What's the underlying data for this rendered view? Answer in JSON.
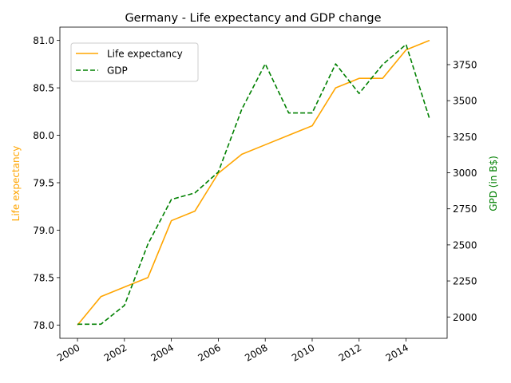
{
  "chart_data": {
    "type": "line",
    "title": "Germany - Life expectancy and GDP change",
    "xlabel": "",
    "x": [
      2000,
      2001,
      2002,
      2003,
      2004,
      2005,
      2006,
      2007,
      2008,
      2009,
      2010,
      2011,
      2012,
      2013,
      2014,
      2015
    ],
    "x_ticks": [
      2000,
      2002,
      2004,
      2006,
      2008,
      2010,
      2012,
      2014
    ],
    "x_tick_labels": [
      "2000",
      "2002",
      "2004",
      "2006",
      "2008",
      "2010",
      "2012",
      "2014"
    ],
    "xlim": [
      1999.25,
      2015.75
    ],
    "grid": false,
    "legend_position": "upper-left",
    "left_axis": {
      "label": "Life expectancy",
      "color": "#ffa500",
      "ylim": [
        77.86,
        81.14
      ],
      "ticks": [
        78.0,
        78.5,
        79.0,
        79.5,
        80.0,
        80.5,
        81.0
      ],
      "tick_labels": [
        "78.0",
        "78.5",
        "79.0",
        "79.5",
        "80.0",
        "80.5",
        "81.0"
      ]
    },
    "right_axis": {
      "label": "GPD (in B$)",
      "color": "#008000",
      "ylim": [
        1852,
        4010
      ],
      "ticks": [
        2000,
        2250,
        2500,
        2750,
        3000,
        3250,
        3500,
        3750
      ],
      "tick_labels": [
        "2000",
        "2250",
        "2500",
        "2750",
        "3000",
        "3250",
        "3500",
        "3750"
      ]
    },
    "series": [
      {
        "name": "Life expectancy",
        "axis": "left",
        "color": "#ffa500",
        "style": "solid",
        "values": [
          78.0,
          78.3,
          78.4,
          78.5,
          79.1,
          79.2,
          79.6,
          79.8,
          79.9,
          80.0,
          80.1,
          80.5,
          80.6,
          80.6,
          80.9,
          81.0
        ]
      },
      {
        "name": "GDP",
        "axis": "right",
        "color": "#008000",
        "style": "dashed",
        "values": [
          1950,
          1950,
          2080,
          2505,
          2815,
          2860,
          3005,
          3440,
          3755,
          3415,
          3415,
          3755,
          3550,
          3750,
          3890,
          3375
        ]
      }
    ]
  }
}
